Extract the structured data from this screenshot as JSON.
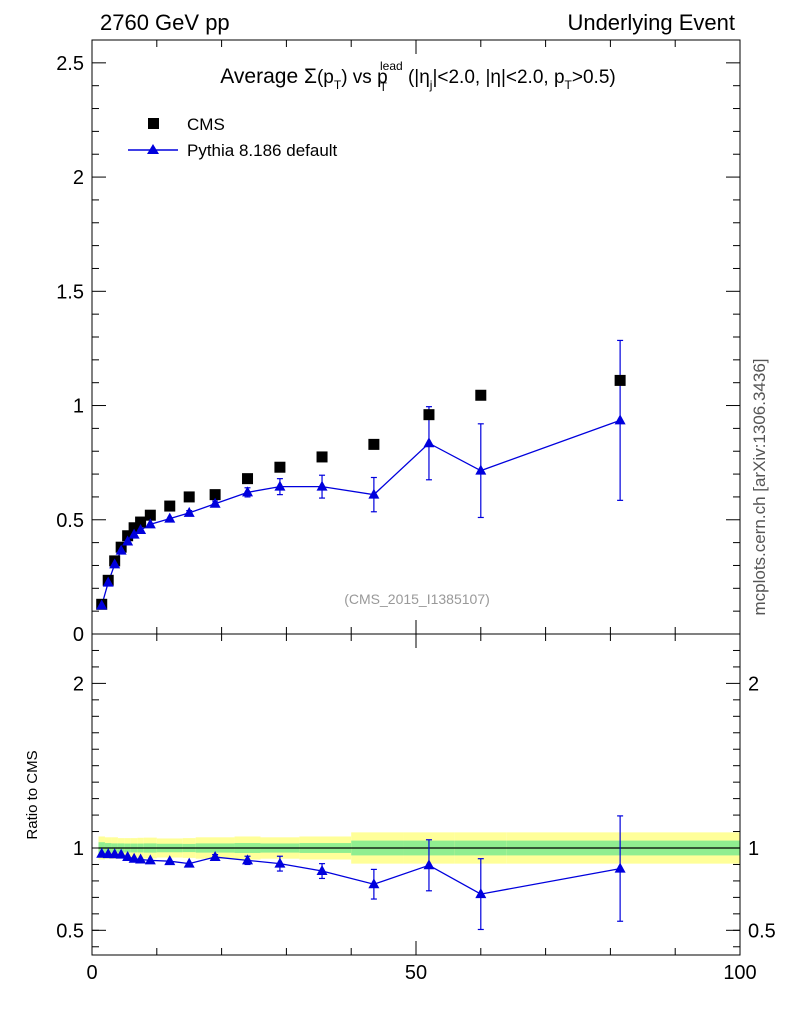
{
  "header": {
    "left": "2760 GeV pp",
    "right": "Underlying Event",
    "side": "mcplots.cern.ch [arXiv:1306.3436]",
    "watermark": "(CMS_2015_I1385107)"
  },
  "colors": {
    "data": "#000000",
    "mc": "#0000dd",
    "band_inner": "#90ee90",
    "band_outer": "#ffff99"
  },
  "chart_data": [
    {
      "type": "scatter",
      "title": {
        "prefix": "Average ",
        "sym": "Σ",
        "p1": "(p",
        "sub1": "T",
        "p2": ") vs p",
        "sub2": "T",
        "sup2": "lead",
        "p3": " (|η",
        "sub3": "j",
        "p4": "|<2.0, |η|<2.0, p",
        "sub4": "T",
        "p5": ">0.5)"
      },
      "xlim": [
        0,
        100
      ],
      "ylim": [
        0,
        2.6
      ],
      "yticks": [
        "0",
        "0.5",
        "1",
        "1.5",
        "2",
        "2.5"
      ],
      "legend": [
        "CMS",
        "Pythia 8.186 default"
      ],
      "series": [
        {
          "name": "CMS",
          "x": [
            1.5,
            2.5,
            3.5,
            4.5,
            5.5,
            6.5,
            7.5,
            9.0,
            12.0,
            15.0,
            19.0,
            24.0,
            29.0,
            35.5,
            43.5,
            52.0,
            60.0,
            81.5
          ],
          "y": [
            0.13,
            0.235,
            0.32,
            0.38,
            0.43,
            0.465,
            0.49,
            0.52,
            0.56,
            0.6,
            0.61,
            0.68,
            0.73,
            0.775,
            0.83,
            0.96,
            1.045,
            1.11
          ]
        },
        {
          "name": "Pythia 8.186 default",
          "x": [
            1.5,
            2.5,
            3.5,
            4.5,
            5.5,
            6.5,
            7.5,
            9.0,
            12.0,
            15.0,
            19.0,
            24.0,
            29.0,
            35.5,
            43.5,
            52.0,
            60.0,
            81.5
          ],
          "y": [
            0.125,
            0.225,
            0.305,
            0.365,
            0.405,
            0.435,
            0.455,
            0.48,
            0.505,
            0.53,
            0.57,
            0.62,
            0.645,
            0.645,
            0.61,
            0.835,
            0.715,
            0.935
          ],
          "err": [
            0.005,
            0.005,
            0.005,
            0.005,
            0.005,
            0.005,
            0.006,
            0.006,
            0.008,
            0.01,
            0.012,
            0.02,
            0.035,
            0.05,
            0.075,
            0.16,
            0.205,
            0.35
          ]
        }
      ]
    },
    {
      "type": "scatter",
      "ylabel": "Ratio to CMS",
      "xlim": [
        0,
        100
      ],
      "ylim": [
        0.35,
        2.3
      ],
      "xticks": [
        "0",
        "50",
        "100"
      ],
      "yticks": [
        "0.5",
        "1",
        "2"
      ],
      "bands": {
        "x": [
          1,
          2,
          3,
          4,
          5,
          6,
          7,
          8,
          10,
          14,
          16,
          22,
          26,
          32,
          40,
          48,
          56,
          64,
          100
        ],
        "inner": [
          0.035,
          0.03,
          0.028,
          0.028,
          0.027,
          0.027,
          0.027,
          0.028,
          0.026,
          0.025,
          0.028,
          0.03,
          0.028,
          0.03,
          0.045,
          0.045,
          0.045,
          0.045
        ],
        "outer": [
          0.07,
          0.065,
          0.065,
          0.06,
          0.06,
          0.06,
          0.062,
          0.063,
          0.058,
          0.06,
          0.065,
          0.07,
          0.065,
          0.07,
          0.095,
          0.095,
          0.095,
          0.095
        ]
      },
      "series": [
        {
          "name": "Pythia 8.186 default",
          "x": [
            1.5,
            2.5,
            3.5,
            4.5,
            5.5,
            6.5,
            7.5,
            9.0,
            12.0,
            15.0,
            19.0,
            24.0,
            29.0,
            35.5,
            43.5,
            52.0,
            60.0,
            81.5
          ],
          "y": [
            0.965,
            0.963,
            0.962,
            0.96,
            0.945,
            0.935,
            0.93,
            0.925,
            0.92,
            0.905,
            0.945,
            0.925,
            0.905,
            0.86,
            0.78,
            0.895,
            0.72,
            0.875
          ],
          "err": [
            0.005,
            0.005,
            0.005,
            0.005,
            0.006,
            0.006,
            0.006,
            0.007,
            0.01,
            0.012,
            0.015,
            0.025,
            0.045,
            0.045,
            0.09,
            0.155,
            0.215,
            0.32
          ]
        }
      ]
    }
  ]
}
